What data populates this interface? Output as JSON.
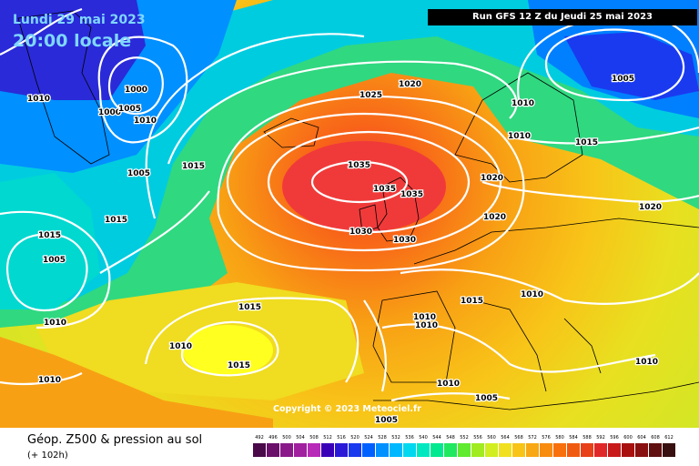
{
  "header": {
    "date_text": "Lundi 29 mai 2023",
    "time_text": "20:00 locale",
    "run_text": "Run GFS 12 Z du Jeudi 25 mai 2023"
  },
  "copyright_text": "Copyright © 2023 Meteociel.fr",
  "footer": {
    "title": "Géop. Z500 & pression au sol",
    "subtitle": "(+ 102h)"
  },
  "legend": {
    "values": [
      "492",
      "496",
      "500",
      "504",
      "508",
      "512",
      "516",
      "520",
      "524",
      "528",
      "532",
      "536",
      "540",
      "544",
      "548",
      "552",
      "556",
      "560",
      "564",
      "568",
      "572",
      "576",
      "580",
      "584",
      "588",
      "592",
      "596",
      "600",
      "604",
      "608",
      "612"
    ],
    "colors": [
      "#4a0a4a",
      "#6a0f6a",
      "#8a1a8a",
      "#a020a0",
      "#b82ab8",
      "#3a00b8",
      "#2a1ad8",
      "#1a3af0",
      "#0060ff",
      "#0090ff",
      "#00b8ff",
      "#00d8f0",
      "#00e8c0",
      "#00e890",
      "#20e860",
      "#60ea30",
      "#a0ec20",
      "#d0ee20",
      "#f0e020",
      "#f8c418",
      "#f8a814",
      "#f88c10",
      "#f8700c",
      "#f05a10",
      "#e84018",
      "#e02828",
      "#c81a1a",
      "#a81010",
      "#881010",
      "#601010",
      "#381010"
    ]
  },
  "isobar_labels": [
    {
      "text": "1000"
    },
    {
      "text": "1000"
    },
    {
      "text": "1005"
    },
    {
      "text": "1010"
    },
    {
      "text": "1010"
    },
    {
      "text": "1005"
    },
    {
      "text": "1015"
    },
    {
      "text": "1025"
    },
    {
      "text": "1020"
    },
    {
      "text": "1005"
    },
    {
      "text": "1010"
    },
    {
      "text": "1015"
    },
    {
      "text": "1020"
    },
    {
      "text": "1015"
    },
    {
      "text": "1005"
    },
    {
      "text": "1010"
    },
    {
      "text": "1035"
    },
    {
      "text": "1035"
    },
    {
      "text": "1035"
    },
    {
      "text": "1030"
    },
    {
      "text": "1030"
    },
    {
      "text": "1020"
    },
    {
      "text": "1020"
    },
    {
      "text": "1015"
    },
    {
      "text": "1015"
    },
    {
      "text": "1015"
    },
    {
      "text": "1010"
    },
    {
      "text": "1010"
    },
    {
      "text": "1010"
    },
    {
      "text": "1010"
    },
    {
      "text": "1015"
    },
    {
      "text": "1010"
    },
    {
      "text": "1010"
    },
    {
      "text": "1010"
    },
    {
      "text": "1005"
    },
    {
      "text": "1005"
    },
    {
      "text": "1010"
    }
  ]
}
